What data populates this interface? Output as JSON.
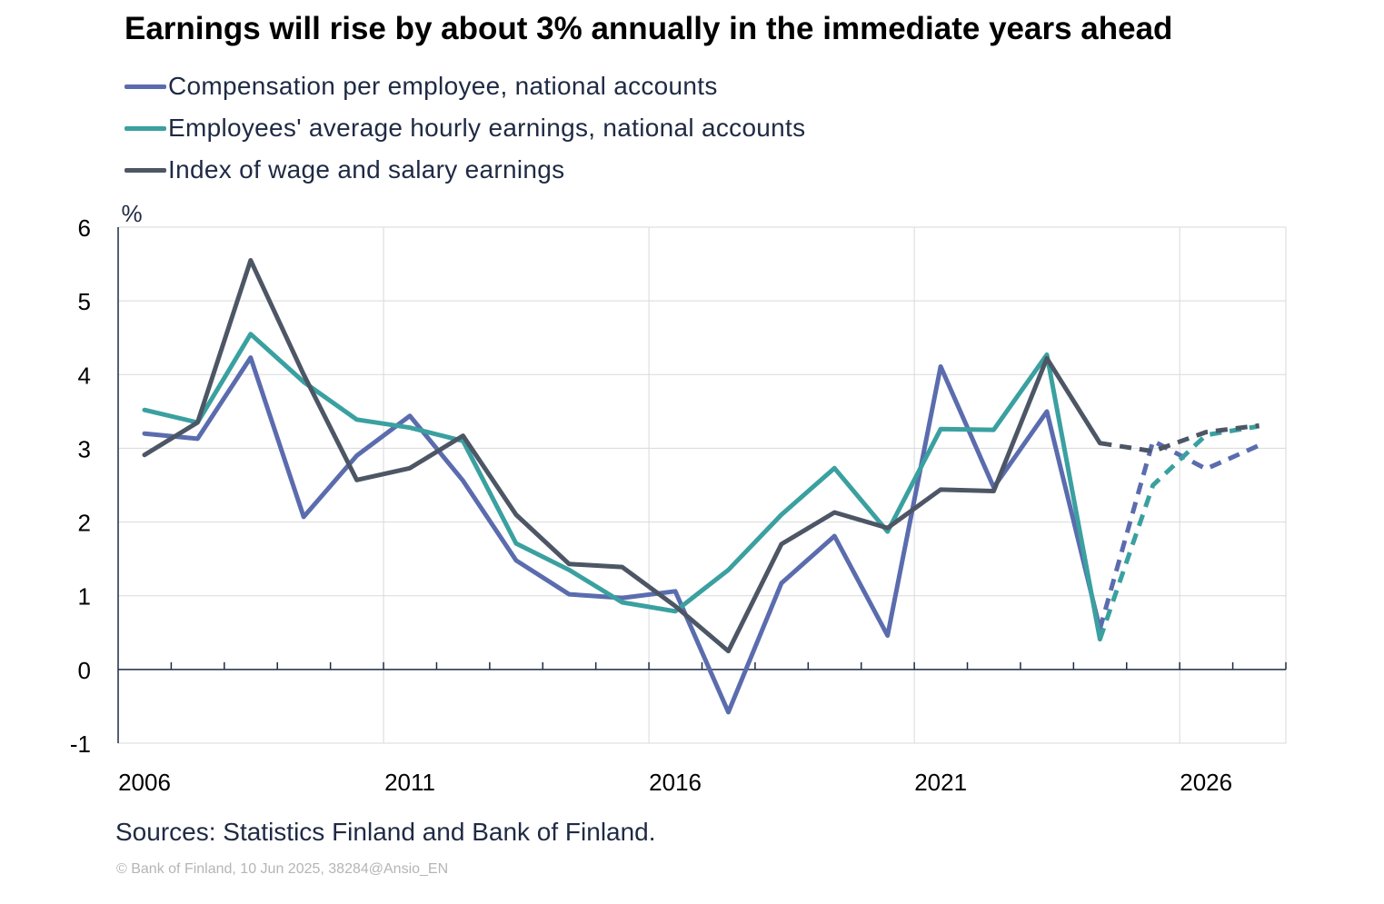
{
  "chart_data": {
    "type": "line",
    "title": "Earnings will rise by about 3% annually in the immediate years ahead",
    "ylabel": "%",
    "ylim": [
      -1,
      6
    ],
    "yticks": [
      -1,
      0,
      1,
      2,
      3,
      4,
      5,
      6
    ],
    "xlim": [
      2006,
      2028
    ],
    "xtick_labels": [
      "2006",
      "2011",
      "2016",
      "2021",
      "2026"
    ],
    "grid": true,
    "legend_position": "top-left",
    "forecast_start": 2024,
    "series": [
      {
        "name": "Compensation per employee, national accounts",
        "color": "#5b6cae",
        "x": [
          2006,
          2007,
          2008,
          2009,
          2010,
          2011,
          2012,
          2013,
          2014,
          2015,
          2016,
          2017,
          2018,
          2019,
          2020,
          2021,
          2022,
          2023,
          2024,
          2025,
          2026,
          2027
        ],
        "values": [
          3.2,
          3.13,
          4.23,
          2.07,
          2.9,
          3.44,
          2.56,
          1.48,
          1.02,
          0.97,
          1.06,
          -0.58,
          1.17,
          1.81,
          0.46,
          4.11,
          2.47,
          3.5,
          0.55,
          3.1,
          2.72,
          3.04
        ]
      },
      {
        "name": "Employees' average hourly earnings, national accounts",
        "color": "#3aa0a0",
        "x": [
          2006,
          2007,
          2008,
          2009,
          2010,
          2011,
          2012,
          2013,
          2014,
          2015,
          2016,
          2017,
          2018,
          2019,
          2020,
          2021,
          2022,
          2023,
          2024,
          2025,
          2026,
          2027
        ],
        "values": [
          3.52,
          3.35,
          4.55,
          3.9,
          3.39,
          3.28,
          3.1,
          1.71,
          1.35,
          0.91,
          0.79,
          1.35,
          2.1,
          2.73,
          1.87,
          3.26,
          3.25,
          4.27,
          0.41,
          2.5,
          3.18,
          3.3
        ]
      },
      {
        "name": "Index of wage and salary earnings",
        "color": "#4d5665",
        "x": [
          2006,
          2007,
          2008,
          2009,
          2010,
          2011,
          2012,
          2013,
          2014,
          2015,
          2016,
          2017,
          2018,
          2019,
          2020,
          2021,
          2022,
          2023,
          2024,
          2025,
          2026,
          2027
        ],
        "values": [
          2.91,
          3.35,
          5.55,
          4.0,
          2.57,
          2.73,
          3.17,
          2.1,
          1.43,
          1.39,
          0.86,
          0.25,
          1.7,
          2.13,
          1.92,
          2.44,
          2.42,
          4.22,
          3.07,
          2.96,
          3.22,
          3.31
        ]
      }
    ]
  },
  "source": "Sources: Statistics Finland and Bank of Finland.",
  "copyright": "© Bank of Finland,  10 Jun 2025, 38284@Ansio_EN"
}
